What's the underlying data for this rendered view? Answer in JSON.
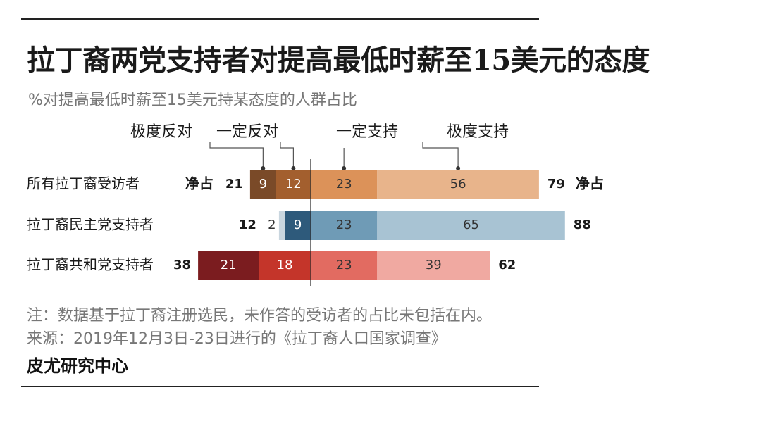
{
  "title": "拉丁裔两党支持者对提高最低时薪至15美元的态度",
  "subtitle": "%对提高最低时薪至15美元持某态度的人群占比",
  "note": "注：数据基于拉丁裔注册选民，未作答的受访者的占比未包括在内。",
  "source": "来源：2019年12月3日-23日进行的《拉丁裔人口国家调查》",
  "brand": "皮尤研究中心",
  "chart_data": {
    "type": "bar",
    "orientation": "horizontal-diverging",
    "legend": [
      "极度反对",
      "一定反对",
      "一定支持",
      "极度支持"
    ],
    "net_label": "净占",
    "categories": [
      "所有拉丁裔受访者",
      "拉丁裔民主党支持者",
      "拉丁裔共和党支持者"
    ],
    "series": [
      {
        "name": "极度反对",
        "values": [
          9,
          2,
          21
        ]
      },
      {
        "name": "一定反对",
        "values": [
          12,
          9,
          18
        ]
      },
      {
        "name": "一定支持",
        "values": [
          23,
          23,
          23
        ]
      },
      {
        "name": "极度支持",
        "values": [
          56,
          65,
          39
        ]
      }
    ],
    "net_oppose": [
      21,
      12,
      38
    ],
    "net_support": [
      79,
      88,
      62
    ],
    "colors": {
      "group0": [
        "#7a4a28",
        "#a35f2e",
        "#dc9259",
        "#e8b48b"
      ],
      "group1": [
        "#c9d6df",
        "#2e5a7b",
        "#6f9bb6",
        "#a8c3d3"
      ],
      "group2": [
        "#7b1c1f",
        "#c4352a",
        "#e26b61",
        "#f0a9a1"
      ]
    }
  }
}
